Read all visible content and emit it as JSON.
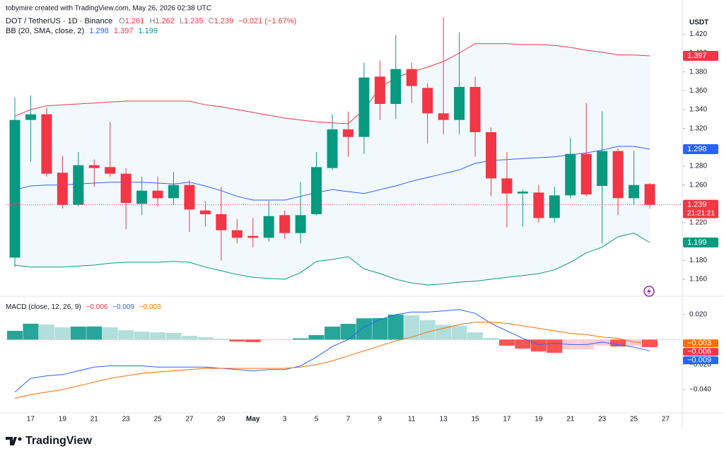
{
  "header": {
    "credit": "tobymire created with TradingView.com, May 26, 2026 02:38 UTC",
    "brand": "TradingView"
  },
  "chart_data": [
    {
      "type": "candlestick",
      "title": "DOT / TetherUS · 1D · Binance",
      "currency": "USDT",
      "ohlc_labels": [
        "O",
        "H",
        "L",
        "C"
      ],
      "change": "−0.021 (−1.67%)",
      "countdown": "21:21:21",
      "categories": [
        null,
        "17",
        null,
        "19",
        null,
        "21",
        null,
        "23",
        null,
        "25",
        null,
        "27",
        null,
        "29",
        null,
        "May",
        null,
        "3",
        null,
        "5",
        null,
        "7",
        null,
        "9",
        null,
        "11",
        null,
        "13",
        null,
        "15",
        null,
        "17",
        null,
        "19",
        null,
        "21",
        null,
        "23",
        null,
        "25",
        null,
        "27"
      ],
      "open": [
        1.183,
        1.329,
        1.335,
        1.273,
        1.239,
        1.281,
        1.279,
        1.272,
        1.24,
        1.254,
        1.246,
        1.26,
        1.233,
        1.229,
        1.212,
        1.206,
        1.204,
        1.228,
        1.209,
        1.229,
        1.278,
        1.319,
        1.311,
        1.375,
        1.346,
        1.383,
        1.363,
        1.336,
        1.329,
        1.364,
        1.316,
        1.267,
        1.251,
        1.252,
        1.225,
        1.249,
        1.293,
        1.259,
        1.296,
        1.246,
        1.261,
        null
      ],
      "high": [
        1.353,
        1.355,
        1.342,
        1.291,
        1.295,
        1.287,
        1.327,
        1.278,
        1.269,
        1.269,
        1.274,
        1.265,
        1.243,
        1.258,
        1.224,
        1.225,
        1.243,
        1.233,
        1.263,
        1.295,
        1.335,
        1.338,
        1.39,
        1.392,
        1.419,
        1.39,
        1.368,
        1.438,
        1.422,
        1.375,
        1.321,
        1.295,
        1.255,
        1.26,
        1.258,
        1.31,
        1.347,
        1.338,
        1.299,
        1.296,
        1.262,
        null
      ],
      "low": [
        1.173,
        1.285,
        1.269,
        1.235,
        1.237,
        1.258,
        1.269,
        1.213,
        1.228,
        1.237,
        1.239,
        1.21,
        1.216,
        1.18,
        1.198,
        1.194,
        1.2,
        1.203,
        1.198,
        1.228,
        1.276,
        1.29,
        1.293,
        1.329,
        1.33,
        1.347,
        1.304,
        1.314,
        1.314,
        1.29,
        1.248,
        1.215,
        1.216,
        1.22,
        1.22,
        1.246,
        1.248,
        1.198,
        1.228,
        1.239,
        1.235,
        null
      ],
      "close": [
        1.329,
        1.335,
        1.272,
        1.239,
        1.281,
        1.278,
        1.272,
        1.241,
        1.254,
        1.246,
        1.26,
        1.234,
        1.229,
        1.212,
        1.204,
        1.204,
        1.227,
        1.209,
        1.228,
        1.279,
        1.319,
        1.311,
        1.374,
        1.346,
        1.383,
        1.365,
        1.336,
        1.329,
        1.364,
        1.316,
        1.267,
        1.251,
        1.253,
        1.225,
        1.249,
        1.293,
        1.25,
        1.296,
        1.246,
        1.26,
        1.239,
        null
      ],
      "up_color": "#089981",
      "down_color": "#f23645",
      "bands": {
        "name": "BB (20, SMA, close, 2)",
        "basis": [
          1.255,
          1.259,
          1.26,
          1.26,
          1.261,
          1.262,
          1.263,
          1.263,
          1.263,
          1.262,
          1.261,
          1.263,
          1.259,
          1.254,
          1.248,
          1.244,
          1.244,
          1.244,
          1.248,
          1.252,
          1.255,
          1.253,
          1.251,
          1.255,
          1.259,
          1.264,
          1.268,
          1.272,
          1.276,
          1.283,
          1.286,
          1.287,
          1.288,
          1.289,
          1.29,
          1.292,
          1.294,
          1.297,
          1.301,
          1.301,
          1.298,
          null
        ],
        "upper": [
          1.333,
          1.34,
          1.344,
          1.345,
          1.346,
          1.347,
          1.348,
          1.349,
          1.349,
          1.349,
          1.349,
          1.349,
          1.345,
          1.343,
          1.34,
          1.337,
          1.334,
          1.331,
          1.329,
          1.327,
          1.326,
          1.325,
          1.34,
          1.363,
          1.374,
          1.38,
          1.385,
          1.391,
          1.4,
          1.41,
          1.41,
          1.41,
          1.409,
          1.409,
          1.408,
          1.406,
          1.403,
          1.401,
          1.398,
          1.398,
          1.397,
          null
        ],
        "lower": [
          1.175,
          1.173,
          1.173,
          1.173,
          1.174,
          1.175,
          1.177,
          1.178,
          1.178,
          1.178,
          1.179,
          1.178,
          1.173,
          1.169,
          1.165,
          1.162,
          1.161,
          1.16,
          1.167,
          1.179,
          1.181,
          1.184,
          1.171,
          1.166,
          1.16,
          1.156,
          1.154,
          1.155,
          1.157,
          1.158,
          1.16,
          1.162,
          1.164,
          1.166,
          1.17,
          1.178,
          1.188,
          1.194,
          1.205,
          1.209,
          1.199,
          null
        ],
        "basis_color": "#2962ff",
        "upper_color": "#f23645",
        "lower_color": "#089981"
      },
      "ylim": [
        1.145,
        1.445
      ],
      "yticks": [
        {
          "value": 1.16,
          "label": "1.160"
        },
        {
          "value": 1.18,
          "label": "1.180"
        },
        {
          "value": 1.2,
          "label": "1.200"
        },
        {
          "value": 1.22,
          "label": "1.220"
        },
        {
          "value": 1.24,
          "label": "1.240"
        },
        {
          "value": 1.26,
          "label": "1.260"
        },
        {
          "value": 1.28,
          "label": "1.280"
        },
        {
          "value": 1.3,
          "label": "1.300"
        },
        {
          "value": 1.32,
          "label": "1.320"
        },
        {
          "value": 1.34,
          "label": "1.340"
        },
        {
          "value": 1.36,
          "label": "1.360"
        },
        {
          "value": 1.38,
          "label": "1.380"
        },
        {
          "value": 1.4,
          "label": "1.400"
        },
        {
          "value": 1.42,
          "label": "1.420"
        }
      ],
      "grid": false
    },
    {
      "type": "macd",
      "title": "MACD (close, 12, 26, 9)",
      "legend_labels": [
        "−0.006",
        "−0.009",
        "−0.003"
      ],
      "axis_labels": [
        "−0.003",
        "−0.006",
        "−0.009"
      ],
      "histogram": [
        0.007,
        0.0127,
        0.012,
        0.0098,
        0.0104,
        0.0105,
        0.0098,
        0.0075,
        0.0064,
        0.0058,
        0.0053,
        0.003,
        0.0019,
        0.0007,
        -0.0015,
        -0.002,
        -0.0005,
        -0.0005,
        0.001,
        0.0036,
        0.0104,
        0.0126,
        0.017,
        0.0172,
        0.02,
        0.0194,
        0.0155,
        0.0118,
        0.011,
        0.0058,
        0.0013,
        -0.0049,
        -0.0072,
        -0.0095,
        -0.0106,
        -0.0078,
        -0.0078,
        -0.0049,
        -0.0055,
        -0.005,
        -0.006,
        null
      ],
      "macd": [
        -0.042,
        -0.031,
        -0.029,
        -0.028,
        -0.025,
        -0.022,
        -0.021,
        -0.021,
        -0.021,
        -0.022,
        -0.022,
        -0.022,
        -0.022,
        -0.023,
        -0.024,
        -0.025,
        -0.024,
        -0.024,
        -0.021,
        -0.014,
        -0.0055,
        0,
        0.01,
        0.016,
        0.02,
        0.022,
        0.022,
        0.023,
        0.024,
        0.021,
        0.013,
        0.007,
        0.001,
        -0.004,
        -0.003,
        -0.004,
        -0.004,
        -0.002,
        -0.004,
        -0.006,
        -0.009,
        null
      ],
      "signal": [
        -0.047,
        -0.044,
        -0.042,
        -0.04,
        -0.037,
        -0.034,
        -0.031,
        -0.029,
        -0.027,
        -0.026,
        -0.025,
        -0.024,
        -0.023,
        -0.023,
        -0.023,
        -0.023,
        -0.023,
        -0.023,
        -0.022,
        -0.02,
        -0.017,
        -0.013,
        -0.009,
        -0.005,
        -0.001,
        0.002,
        0.006,
        0.009,
        0.012,
        0.014,
        0.014,
        0.013,
        0.011,
        0.009,
        0.007,
        0.005,
        0.004,
        0.002,
        0.001,
        -0.002,
        -0.003,
        null
      ],
      "hist_colors": [
        "#26a69a",
        "#b2dfdb",
        "#ff5252",
        "#ffcdd2"
      ],
      "histogram_tag_color": "#f23645",
      "macd_color": "#2962ff",
      "signal_color": "#ff6d00",
      "ylim": [
        -0.0575,
        0.033
      ],
      "yticks": [
        {
          "value": 0.02,
          "label": "0.020"
        },
        {
          "value": -0.02,
          "label": "−0.020"
        },
        {
          "value": -0.04,
          "label": "−0.040"
        }
      ]
    }
  ]
}
